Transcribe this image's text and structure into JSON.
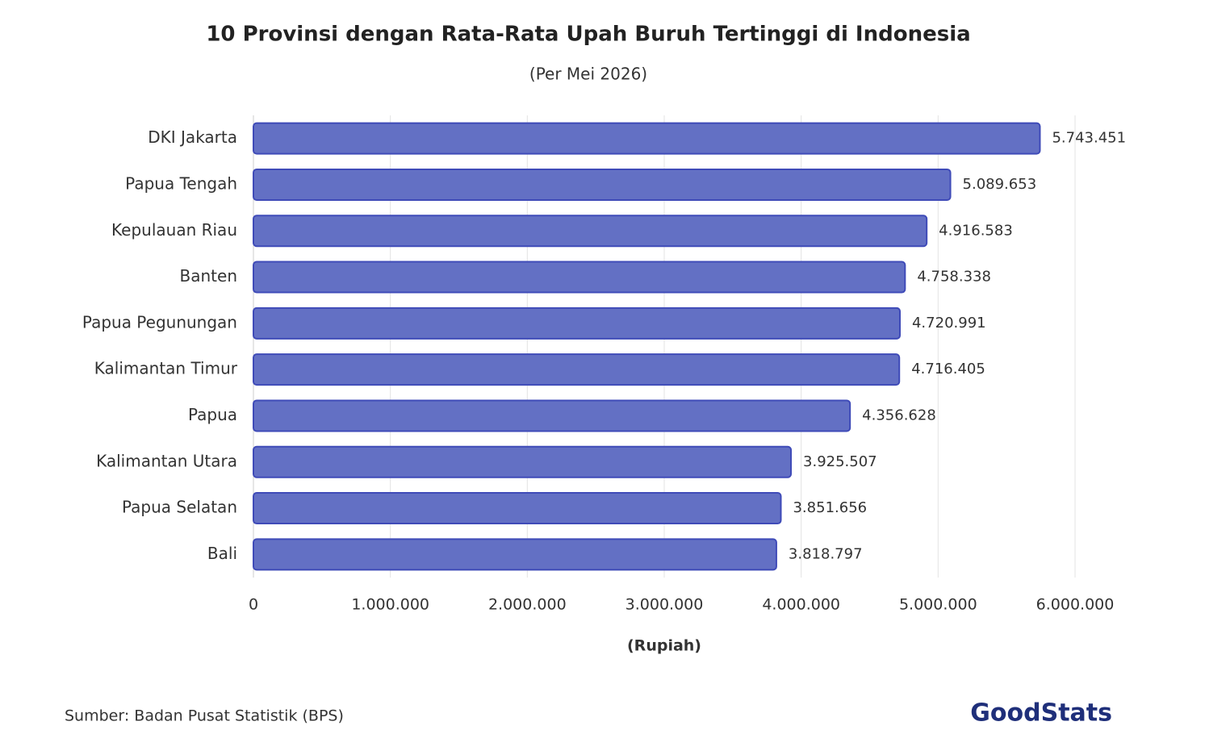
{
  "chart_data": {
    "type": "hbar",
    "title": "10 Provinsi dengan Rata-Rata Upah Buruh Tertinggi di Indonesia",
    "subtitle": "(Per Mei 2026)",
    "x_label": "(Rupiah)",
    "source": "Sumber: Badan Pusat Statistik (BPS)",
    "logo": "GoodStats",
    "categories": [
      "DKI Jakarta",
      "Papua Tengah",
      "Kepulauan Riau",
      "Banten",
      "Papua Pegunungan",
      "Kalimantan Timur",
      "Papua",
      "Kalimantan Utara",
      "Papua Selatan",
      "Bali"
    ],
    "values": [
      5743451,
      5089653,
      4916583,
      4758338,
      4720991,
      4716405,
      4356628,
      3925507,
      3851656,
      3818797
    ],
    "value_labels": [
      "5.743.451",
      "5.089.653",
      "4.916.583",
      "4.758.338",
      "4.720.991",
      "4.716.405",
      "4.356.628",
      "3.925.507",
      "3.851.656",
      "3.818.797"
    ],
    "color": "#6370c4",
    "xlim": [
      0,
      6000000
    ],
    "xticks": [
      0,
      {
        "value": 1000000,
        "label": "1.000.000"
      },
      {
        "value": 2000000,
        "label": "2.000.000"
      },
      {
        "value": 3000000,
        "label": "3.000.000"
      },
      {
        "value": 4000000,
        "label": "4.000.000"
      },
      {
        "value": 5000000,
        "label": "5.000.000"
      },
      {
        "value": 6000000,
        "label": "6.000.000"
      }
    ],
    "grid": true
  }
}
